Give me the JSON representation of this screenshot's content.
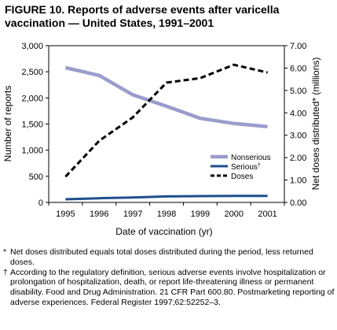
{
  "title": "FIGURE 10. Reports of adverse events after varicella vaccination — United States, 1991–2001",
  "chart_data": {
    "type": "line",
    "categories": [
      "1995",
      "1996",
      "1997",
      "1998",
      "1999",
      "2000",
      "2001"
    ],
    "xlabel": "Date of vaccination (yr)",
    "ylabel_left": "Number of reports",
    "ylabel_right": "Net doses distributed* (millions)",
    "y_left_ticks": [
      "0",
      "500",
      "1,000",
      "1,500",
      "2,000",
      "2,500",
      "3,000"
    ],
    "y_right_ticks": [
      "0.00",
      "1.00",
      "2.00",
      "3.00",
      "4.00",
      "5.00",
      "6.00",
      "7.00"
    ],
    "ylim_left": [
      0,
      3000
    ],
    "ylim_right": [
      0,
      7
    ],
    "grid": false,
    "legend_position": "right",
    "series": [
      {
        "name": "Nonserious",
        "axis": "left",
        "style": "solid-thick",
        "color": "#9a9ccc",
        "values": [
          2580,
          2430,
          2060,
          1840,
          1610,
          1510,
          1450
        ]
      },
      {
        "name": "Serious",
        "name_suffix": "†",
        "axis": "left",
        "style": "solid",
        "color": "#1f4e8c",
        "values": [
          60,
          80,
          95,
          115,
          120,
          125,
          125
        ]
      },
      {
        "name": "Doses",
        "axis": "right",
        "style": "dashed",
        "color": "#000000",
        "values": [
          1.15,
          2.75,
          3.8,
          5.35,
          5.55,
          6.15,
          5.8
        ]
      }
    ]
  },
  "footnotes": [
    {
      "symbol": "*",
      "text": "Net doses distributed equals total doses distributed during the period, less returned doses."
    },
    {
      "symbol": "†",
      "text": "According to the regulatory definition, serious adverse events involve hospitalization or prolongation of hospitalization, death, or report life-threatening illness or permanent disability. Food and Drug Administration. 21 CFR Part 600.80. Postmarketing reporting of adverse experiences. Federal Register 1997;62:52252–3."
    }
  ]
}
